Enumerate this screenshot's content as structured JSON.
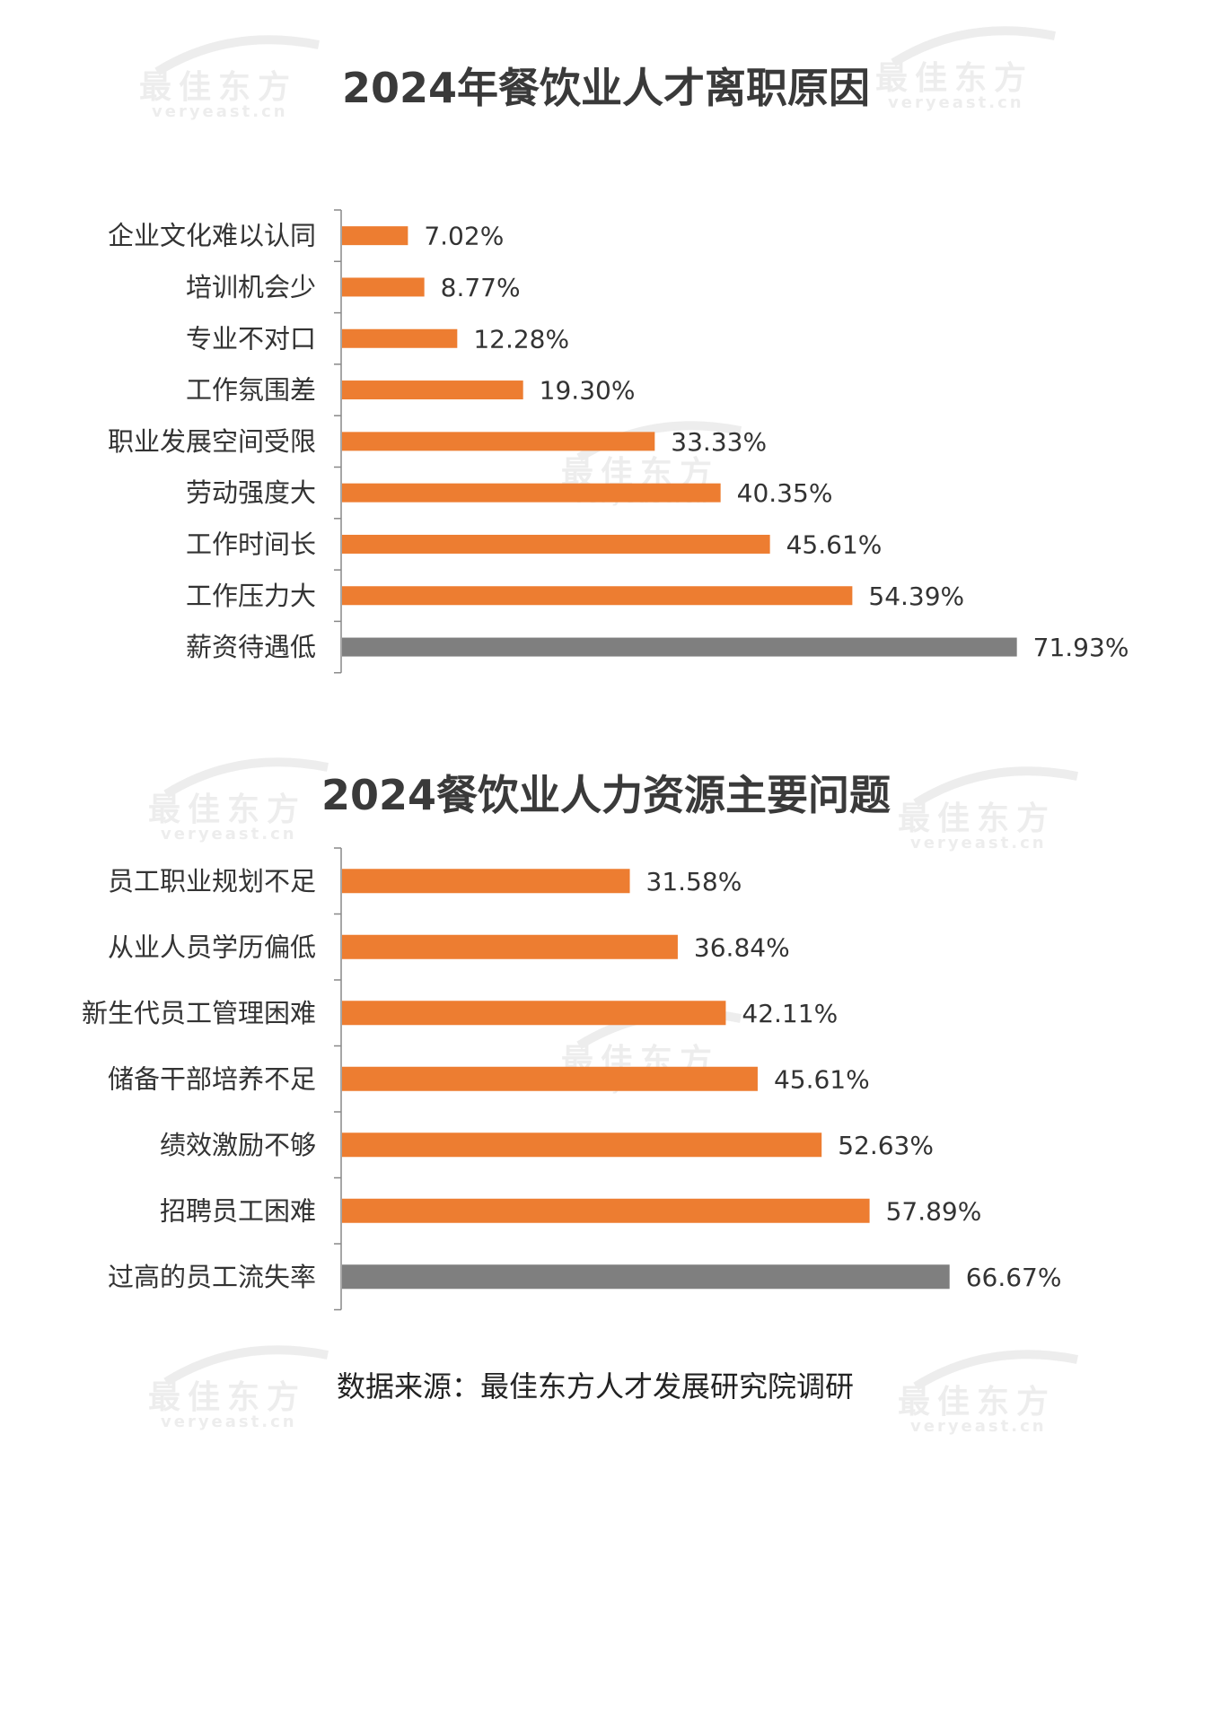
{
  "watermark": {
    "brand": "最佳东方",
    "domain": "veryeast.cn"
  },
  "colors": {
    "orange": "#ED7D31",
    "gray": "#7F7F7F",
    "axis": "#888888"
  },
  "source_note": "数据来源：最佳东方人才发展研究院调研",
  "chart_data": [
    {
      "type": "bar",
      "orientation": "horizontal",
      "title": "2024年餐饮业人才离职原因",
      "categories": [
        "企业文化难以认同",
        "培训机会少",
        "专业不对口",
        "工作氛围差",
        "职业发展空间受限",
        "劳动强度大",
        "工作时间长",
        "工作压力大",
        "薪资待遇低"
      ],
      "values": [
        7.02,
        8.77,
        12.28,
        19.3,
        33.33,
        40.35,
        45.61,
        54.39,
        71.93
      ],
      "labels": [
        "7.02%",
        "8.77%",
        "12.28%",
        "19.30%",
        "33.33%",
        "40.35%",
        "45.61%",
        "54.39%",
        "71.93%"
      ],
      "highlight": [
        "orange",
        "orange",
        "orange",
        "orange",
        "orange",
        "orange",
        "orange",
        "orange",
        "gray"
      ],
      "unit": "%",
      "grid": false,
      "legend": "none"
    },
    {
      "type": "bar",
      "orientation": "horizontal",
      "title": "2024餐饮业人力资源主要问题",
      "categories": [
        "员工职业规划不足",
        "从业人员学历偏低",
        "新生代员工管理困难",
        "储备干部培养不足",
        "绩效激励不够",
        "招聘员工困难",
        "过高的员工流失率"
      ],
      "values": [
        31.58,
        36.84,
        42.11,
        45.61,
        52.63,
        57.89,
        66.67
      ],
      "labels": [
        "31.58%",
        "36.84%",
        "42.11%",
        "45.61%",
        "52.63%",
        "57.89%",
        "66.67%"
      ],
      "highlight": [
        "orange",
        "orange",
        "orange",
        "orange",
        "orange",
        "orange",
        "gray"
      ],
      "unit": "%",
      "grid": false,
      "legend": "none"
    }
  ]
}
